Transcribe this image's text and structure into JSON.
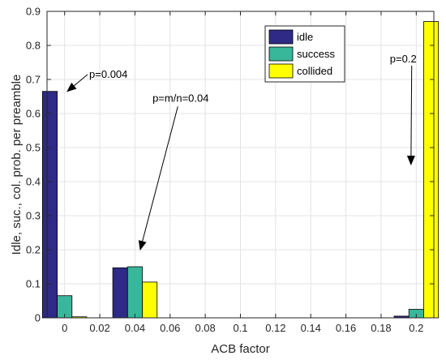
{
  "chart_data": {
    "type": "bar",
    "xlabel": "ACB factor",
    "ylabel": "Idle, suc., col. prob. per preamble",
    "xlim": [
      -0.01,
      0.21
    ],
    "ylim": [
      0,
      0.9
    ],
    "xticks": [
      "0",
      "0.02",
      "0.04",
      "0.06",
      "0.08",
      "0.1",
      "0.12",
      "0.14",
      "0.16",
      "0.18",
      "0.2"
    ],
    "yticks": [
      "0",
      "0.1",
      "0.2",
      "0.3",
      "0.4",
      "0.5",
      "0.6",
      "0.7",
      "0.8",
      "0.9"
    ],
    "grid": true,
    "legend_position": "top-right",
    "categories": [
      0,
      0.04,
      0.2
    ],
    "series": [
      {
        "name": "idle",
        "color": "#2e2a86",
        "values": [
          0.665,
          0.147,
          0.005
        ]
      },
      {
        "name": "success",
        "color": "#38b79a",
        "values": [
          0.065,
          0.15,
          0.025
        ]
      },
      {
        "name": "collided",
        "color": "#ffff00",
        "values": [
          0.003,
          0.105,
          0.87
        ]
      }
    ],
    "annotations": [
      {
        "text": "p=0.004",
        "x": 0.014,
        "y": 0.705,
        "arrow_to": [
          0.0015,
          0.665
        ]
      },
      {
        "text": "p=m/n=0.04",
        "x": 0.05,
        "y": 0.635,
        "arrow_to": [
          0.043,
          0.2
        ]
      },
      {
        "text": "p=0.2",
        "x": 0.185,
        "y": 0.75,
        "arrow_to": [
          0.197,
          0.45
        ]
      }
    ]
  }
}
